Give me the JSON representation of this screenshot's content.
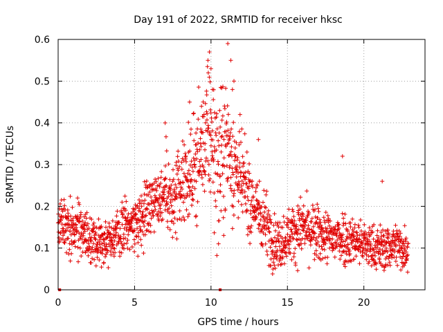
{
  "chart_data": {
    "type": "scatter",
    "title": "Day 191 of 2022, SRMTID for receiver hksc",
    "xlabel": "GPS time / hours",
    "ylabel": "SRMTID / TECUs",
    "xlim": [
      0,
      24
    ],
    "ylim": [
      0,
      0.6
    ],
    "x_ticks": [
      0,
      5,
      10,
      15,
      20
    ],
    "y_ticks": [
      0,
      0.1,
      0.2,
      0.3,
      0.4,
      0.5,
      0.6
    ],
    "x_tick_labels": [
      "0",
      "5",
      "10",
      "15",
      "20"
    ],
    "y_tick_labels": [
      "0",
      "0.1",
      "0.2",
      "0.3",
      "0.4",
      "0.5",
      "0.6"
    ],
    "grid": true,
    "marker": "+",
    "color": "#e00000",
    "zero_points": [
      [
        0.1,
        0
      ],
      [
        10.6,
        0
      ]
    ],
    "trend": {
      "x": [
        0,
        0.5,
        1,
        1.5,
        2,
        2.5,
        3,
        3.5,
        4,
        4.5,
        5,
        5.5,
        6,
        6.5,
        7,
        7.5,
        8,
        8.5,
        9,
        9.5,
        10,
        10.5,
        11,
        11.5,
        12,
        12.5,
        13,
        13.5,
        14,
        14.5,
        15,
        15.5,
        16,
        16.5,
        17,
        17.5,
        18,
        18.5,
        19,
        19.5,
        20,
        20.5,
        21,
        21.5,
        22,
        22.5,
        23
      ],
      "y": [
        0.17,
        0.15,
        0.16,
        0.14,
        0.12,
        0.11,
        0.12,
        0.12,
        0.14,
        0.15,
        0.16,
        0.18,
        0.21,
        0.22,
        0.24,
        0.2,
        0.23,
        0.27,
        0.3,
        0.34,
        0.38,
        0.28,
        0.36,
        0.3,
        0.26,
        0.22,
        0.19,
        0.17,
        0.12,
        0.11,
        0.13,
        0.14,
        0.15,
        0.14,
        0.13,
        0.13,
        0.12,
        0.13,
        0.12,
        0.12,
        0.11,
        0.1,
        0.1,
        0.1,
        0.11,
        0.1,
        0.1
      ],
      "spread": [
        0.045,
        0.045,
        0.045,
        0.045,
        0.04,
        0.035,
        0.035,
        0.035,
        0.04,
        0.04,
        0.04,
        0.045,
        0.05,
        0.05,
        0.06,
        0.06,
        0.07,
        0.07,
        0.08,
        0.09,
        0.1,
        0.12,
        0.1,
        0.09,
        0.07,
        0.06,
        0.05,
        0.05,
        0.045,
        0.04,
        0.04,
        0.045,
        0.045,
        0.045,
        0.045,
        0.04,
        0.04,
        0.045,
        0.04,
        0.035,
        0.035,
        0.035,
        0.035,
        0.035,
        0.035,
        0.035,
        0.035
      ],
      "x_end": 22.9,
      "point_count": 1800
    }
  }
}
